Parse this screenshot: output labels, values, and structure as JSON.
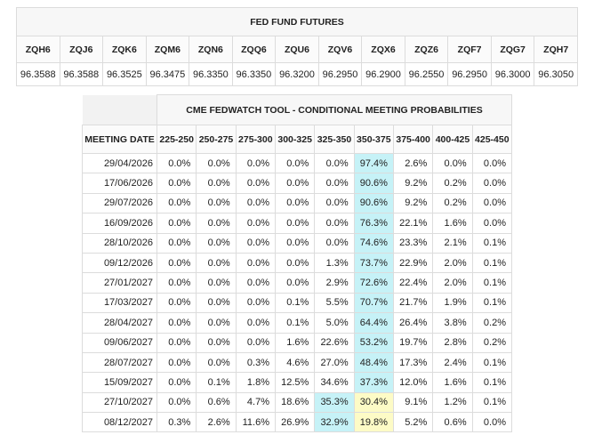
{
  "futures": {
    "title": "FED FUND FUTURES",
    "codes": [
      "ZQH6",
      "ZQJ6",
      "ZQK6",
      "ZQM6",
      "ZQN6",
      "ZQQ6",
      "ZQU6",
      "ZQV6",
      "ZQX6",
      "ZQZ6",
      "ZQF7",
      "ZQG7",
      "ZQH7"
    ],
    "prices": [
      "96.3588",
      "96.3588",
      "96.3525",
      "96.3475",
      "96.3350",
      "96.3350",
      "96.3200",
      "96.2950",
      "96.2900",
      "96.2550",
      "96.2950",
      "96.3000",
      "96.3050"
    ]
  },
  "fedwatch": {
    "title": "CME FEDWATCH TOOL - CONDITIONAL MEETING PROBABILITIES",
    "headers": [
      "MEETING DATE",
      "225-250",
      "250-275",
      "275-300",
      "300-325",
      "325-350",
      "350-375",
      "375-400",
      "400-425",
      "425-450"
    ],
    "rows": [
      [
        "29/04/2026",
        "0.0%",
        "0.0%",
        "0.0%",
        "0.0%",
        "0.0%",
        "97.4%",
        "2.6%",
        "0.0%",
        "0.0%"
      ],
      [
        "17/06/2026",
        "0.0%",
        "0.0%",
        "0.0%",
        "0.0%",
        "0.0%",
        "90.6%",
        "9.2%",
        "0.2%",
        "0.0%"
      ],
      [
        "29/07/2026",
        "0.0%",
        "0.0%",
        "0.0%",
        "0.0%",
        "0.0%",
        "90.6%",
        "9.2%",
        "0.2%",
        "0.0%"
      ],
      [
        "16/09/2026",
        "0.0%",
        "0.0%",
        "0.0%",
        "0.0%",
        "0.0%",
        "76.3%",
        "22.1%",
        "1.6%",
        "0.0%"
      ],
      [
        "28/10/2026",
        "0.0%",
        "0.0%",
        "0.0%",
        "0.0%",
        "0.0%",
        "74.6%",
        "23.3%",
        "2.1%",
        "0.1%"
      ],
      [
        "09/12/2026",
        "0.0%",
        "0.0%",
        "0.0%",
        "0.0%",
        "1.3%",
        "73.7%",
        "22.9%",
        "2.0%",
        "0.1%"
      ],
      [
        "27/01/2027",
        "0.0%",
        "0.0%",
        "0.0%",
        "0.0%",
        "2.9%",
        "72.6%",
        "22.4%",
        "2.0%",
        "0.1%"
      ],
      [
        "17/03/2027",
        "0.0%",
        "0.0%",
        "0.0%",
        "0.1%",
        "5.5%",
        "70.7%",
        "21.7%",
        "1.9%",
        "0.1%"
      ],
      [
        "28/04/2027",
        "0.0%",
        "0.0%",
        "0.0%",
        "0.1%",
        "5.0%",
        "64.4%",
        "26.4%",
        "3.8%",
        "0.2%"
      ],
      [
        "09/06/2027",
        "0.0%",
        "0.0%",
        "0.0%",
        "1.6%",
        "22.6%",
        "53.2%",
        "19.7%",
        "2.8%",
        "0.2%"
      ],
      [
        "28/07/2027",
        "0.0%",
        "0.0%",
        "0.3%",
        "4.6%",
        "27.0%",
        "48.4%",
        "17.3%",
        "2.4%",
        "0.1%"
      ],
      [
        "15/09/2027",
        "0.0%",
        "0.1%",
        "1.8%",
        "12.5%",
        "34.6%",
        "37.3%",
        "12.0%",
        "1.6%",
        "0.1%"
      ],
      [
        "27/10/2027",
        "0.0%",
        "0.6%",
        "4.7%",
        "18.6%",
        "35.3%",
        "30.4%",
        "9.1%",
        "1.2%",
        "0.1%"
      ],
      [
        "08/12/2027",
        "0.3%",
        "2.6%",
        "11.6%",
        "26.9%",
        "32.9%",
        "19.8%",
        "5.2%",
        "0.6%",
        "0.0%"
      ]
    ]
  }
}
